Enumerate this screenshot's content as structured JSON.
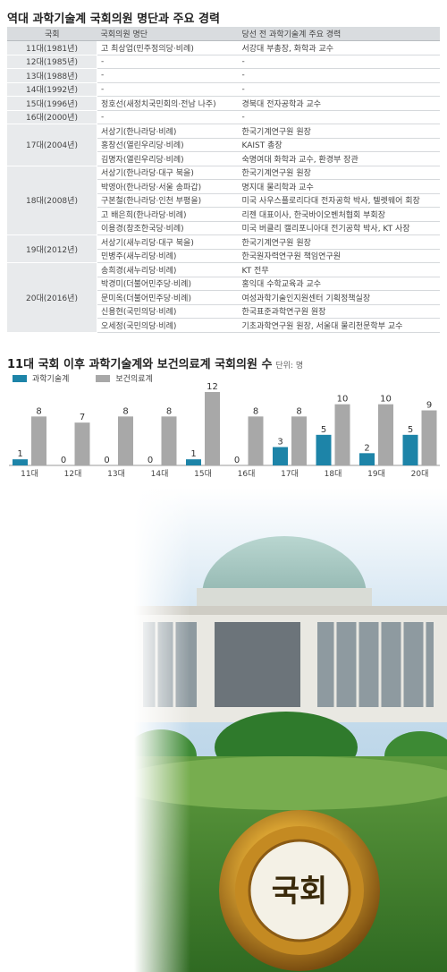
{
  "table": {
    "title": "역대 과학기술계 국회의원 명단과 주요 경력",
    "headers": [
      "국회",
      "국회의원 명단",
      "당선 전 과학기술계 주요 경력"
    ],
    "groups": [
      {
        "session": "11대(1981년)",
        "rows": [
          {
            "member": "고 최상업(민주정의당·비례)",
            "career": "서강대 부총장, 화학과 교수"
          }
        ]
      },
      {
        "session": "12대(1985년)",
        "rows": [
          {
            "member": "-",
            "career": "-"
          }
        ]
      },
      {
        "session": "13대(1988년)",
        "rows": [
          {
            "member": "-",
            "career": "-"
          }
        ]
      },
      {
        "session": "14대(1992년)",
        "rows": [
          {
            "member": "-",
            "career": "-"
          }
        ]
      },
      {
        "session": "15대(1996년)",
        "rows": [
          {
            "member": "정호선(새정치국민회의·전남 나주)",
            "career": "경북대 전자공학과 교수"
          }
        ]
      },
      {
        "session": "16대(2000년)",
        "rows": [
          {
            "member": "-",
            "career": "-"
          }
        ]
      },
      {
        "session": "17대(2004년)",
        "rows": [
          {
            "member": "서상기(한나라당·비례)",
            "career": "한국기계연구원 원장"
          },
          {
            "member": "홍창선(열린우리당·비례)",
            "career": "KAIST 총장"
          },
          {
            "member": "김명자(열린우리당·비례)",
            "career": "숙명여대 화학과 교수, 환경부 장관"
          }
        ]
      },
      {
        "session": "18대(2008년)",
        "rows": [
          {
            "member": "서상기(한나라당·대구 북을)",
            "career": "한국기계연구원 원장"
          },
          {
            "member": "박영아(한나라당·서울 송파갑)",
            "career": "명지대 물리학과 교수"
          },
          {
            "member": "구본철(한나라당·인천 부평을)",
            "career": "미국 사우스플로리다대 전자공학 박사, 텔렛웨어 회장"
          },
          {
            "member": "고 배은희(한나라당·비례)",
            "career": "리젠 대표이사, 한국바이오벤처협회 부회장"
          },
          {
            "member": "이용경(창조한국당·비례)",
            "career": "미국 버클리 캘리포니아대 전기공학 박사, KT 사장"
          }
        ]
      },
      {
        "session": "19대(2012년)",
        "rows": [
          {
            "member": "서상기(새누리당·대구 북을)",
            "career": "한국기계연구원 원장"
          },
          {
            "member": "민병주(새누리당·비례)",
            "career": "한국원자력연구원 책임연구원"
          }
        ]
      },
      {
        "session": "20대(2016년)",
        "rows": [
          {
            "member": "송희경(새누리당·비례)",
            "career": "KT 전무"
          },
          {
            "member": "박경미(더불어민주당·비례)",
            "career": "홍익대 수학교육과 교수"
          },
          {
            "member": "문미옥(더불어민주당·비례)",
            "career": "여성과학기술인지원센터 기획정책실장"
          },
          {
            "member": "신용현(국민의당·비례)",
            "career": "한국표준과학연구원 원장"
          },
          {
            "member": "오세정(국민의당·비례)",
            "career": "기초과학연구원 원장, 서울대 물리천문학부 교수"
          }
        ]
      }
    ]
  },
  "chart_title": "11대 국회 이후 과학기술계와 보건의료계 국회의원 수",
  "chart_unit": "단위: 명",
  "chart_data": {
    "type": "bar",
    "categories": [
      "11대",
      "12대",
      "13대",
      "14대",
      "15대",
      "16대",
      "17대",
      "18대",
      "19대",
      "20대"
    ],
    "series": [
      {
        "name": "과학기술계",
        "color": "#1d84a8",
        "values": [
          1,
          0,
          0,
          0,
          1,
          0,
          3,
          5,
          2,
          5
        ]
      },
      {
        "name": "보건의료계",
        "color": "#a8a8a8",
        "values": [
          8,
          7,
          8,
          8,
          12,
          8,
          8,
          10,
          10,
          9
        ]
      }
    ],
    "ylim": [
      0,
      12
    ],
    "legend": "top-left"
  },
  "photo": {
    "badge_text": "국회"
  }
}
